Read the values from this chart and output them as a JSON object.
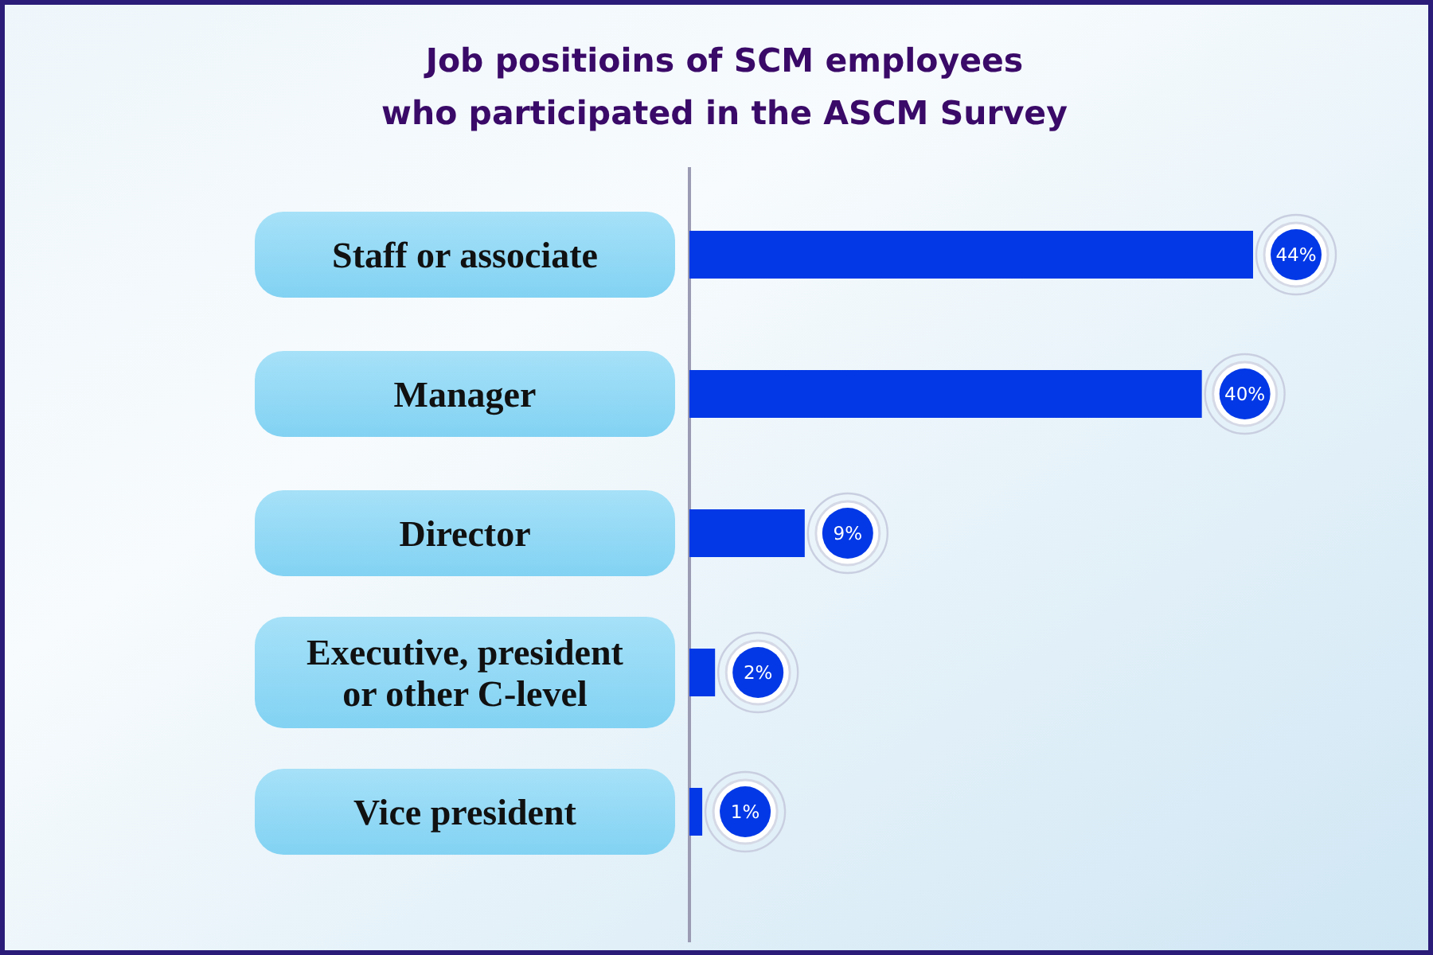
{
  "chart_data": {
    "type": "bar",
    "orientation": "horizontal",
    "title": "Job positioins of SCM employees who participated in the ASCM Survey",
    "categories": [
      "Staff or associate",
      "Manager",
      "Director",
      "Executive, president or other C-level",
      "Vice president"
    ],
    "values": [
      44,
      40,
      9,
      2,
      1
    ],
    "color": "#0238e6",
    "value_labels": [
      "44%",
      "40%",
      "9%",
      "2%",
      "1%"
    ],
    "tick_labels": "y"
  }
}
